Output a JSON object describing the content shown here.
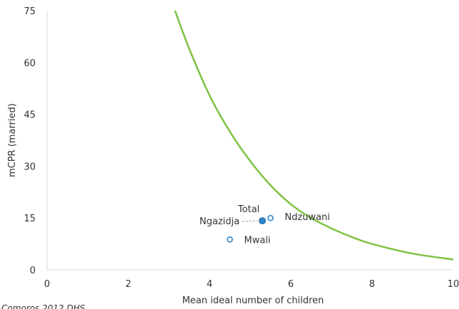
{
  "chart_data": {
    "type": "scatter",
    "xlabel": "Mean ideal number of children",
    "ylabel": "mCPR (married)",
    "xlim": [
      0,
      10
    ],
    "ylim": [
      0,
      75
    ],
    "x_ticks": [
      0,
      2,
      4,
      6,
      8,
      10
    ],
    "y_ticks": [
      0,
      15,
      30,
      45,
      60,
      75
    ],
    "grid": false,
    "source_note": "Comoros 2012 DHS",
    "curve": {
      "color": "#7dc242",
      "points": [
        [
          3.15,
          75
        ],
        [
          3.5,
          64
        ],
        [
          4.0,
          50.5
        ],
        [
          4.5,
          40
        ],
        [
          5.0,
          31.5
        ],
        [
          5.5,
          24.5
        ],
        [
          6.0,
          19
        ],
        [
          6.5,
          15
        ],
        [
          7.0,
          12
        ],
        [
          7.5,
          9.5
        ],
        [
          8.0,
          7.5
        ],
        [
          9.0,
          4.7
        ],
        [
          10.0,
          3
        ]
      ]
    },
    "points": [
      {
        "label": "Total",
        "x": 5.3,
        "y": 14.2,
        "style": "filled",
        "color": "#2f86c8"
      },
      {
        "label": "Ngazidja",
        "x": 5.3,
        "y": 14.2,
        "style": "open",
        "color": "#2f86c8"
      },
      {
        "label": "Ndzuwani",
        "x": 5.5,
        "y": 15,
        "style": "open",
        "color": "#2f86c8"
      },
      {
        "label": "Mwali",
        "x": 4.5,
        "y": 8.8,
        "style": "open",
        "color": "#2f86c8"
      }
    ]
  }
}
